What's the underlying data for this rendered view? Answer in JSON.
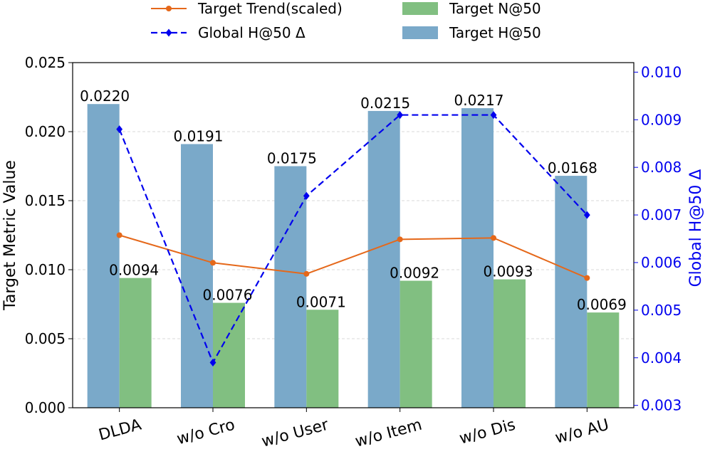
{
  "chart_data": {
    "type": "bar",
    "categories": [
      "DLDA",
      "w/o Cro",
      "w/o User",
      "w/o Item",
      "w/o Dis",
      "w/o AU"
    ],
    "ylabel": "Target Metric Value",
    "ylabel_right": "Global H@50 Δ",
    "ylim": [
      0,
      0.025
    ],
    "ylim_right": [
      0.00295,
      0.0102
    ],
    "yticks": [
      "0.000",
      "0.005",
      "0.010",
      "0.015",
      "0.020",
      "0.025"
    ],
    "yticks_right": [
      "0.003",
      "0.004",
      "0.005",
      "0.006",
      "0.007",
      "0.008",
      "0.009",
      "0.010"
    ],
    "grid": true,
    "legend_position": "top",
    "series": [
      {
        "name": "Target H@50",
        "kind": "bar",
        "color": "#7aa9c9",
        "values": [
          0.022,
          0.0191,
          0.0175,
          0.0215,
          0.0217,
          0.0168
        ],
        "labels": [
          "0.0220",
          "0.0191",
          "0.0175",
          "0.0215",
          "0.0217",
          "0.0168"
        ]
      },
      {
        "name": "Target N@50",
        "kind": "bar",
        "color": "#81bf81",
        "values": [
          0.0094,
          0.0076,
          0.0071,
          0.0092,
          0.0093,
          0.0069
        ],
        "labels": [
          "0.0094",
          "0.0076",
          "0.0071",
          "0.0092",
          "0.0093",
          "0.0069"
        ]
      },
      {
        "name": "Target Trend(scaled)",
        "kind": "line",
        "axis": "left",
        "color": "#e5681a",
        "values": [
          0.0125,
          0.0105,
          0.0097,
          0.0122,
          0.0123,
          0.0094
        ]
      },
      {
        "name": "Global H@50 Δ",
        "kind": "line",
        "axis": "right",
        "dashed": true,
        "color": "#0000ee",
        "values": [
          0.0088,
          0.0039,
          0.0074,
          0.0091,
          0.0091,
          0.007
        ]
      }
    ],
    "legend": [
      {
        "label": "Target Trend(scaled)",
        "kind": "line-circle",
        "color": "#e5681a"
      },
      {
        "label": "Target N@50",
        "kind": "patch",
        "color": "#81bf81"
      },
      {
        "label": "Global H@50 Δ",
        "kind": "dashed-diamond",
        "color": "#0000ee"
      },
      {
        "label": "Target H@50",
        "kind": "patch",
        "color": "#7aa9c9"
      }
    ]
  }
}
